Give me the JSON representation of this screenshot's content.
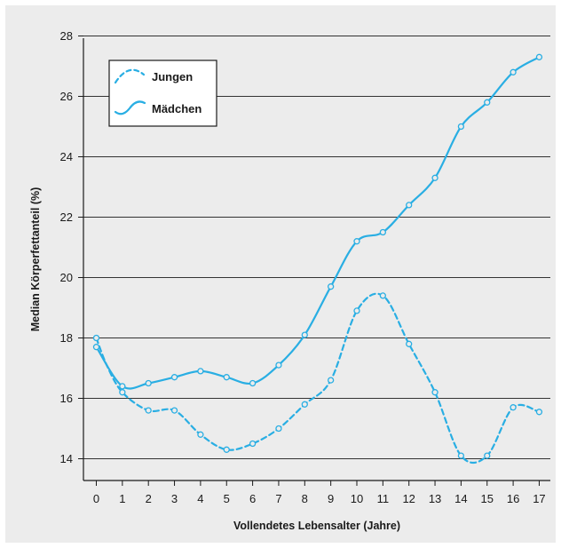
{
  "chart_data": {
    "type": "line",
    "title": "",
    "xlabel": "Vollendetes Lebensalter (Jahre)",
    "ylabel": "Median Körperfettanteil (%)",
    "x": [
      0,
      1,
      2,
      3,
      4,
      5,
      6,
      7,
      8,
      9,
      10,
      11,
      12,
      13,
      14,
      15,
      16,
      17
    ],
    "xlim": [
      -0.5,
      17.5
    ],
    "ylim": [
      13.2,
      28
    ],
    "yticks": [
      14,
      16,
      18,
      20,
      22,
      24,
      26,
      28
    ],
    "grid": "horizontal",
    "legend_position": "top-left",
    "series": [
      {
        "name": "Jungen",
        "style": "dashed",
        "color": "#29aee3",
        "points": [
          [
            0,
            18.0
          ],
          [
            0.4,
            17.1
          ],
          [
            1,
            16.2
          ],
          [
            2,
            15.6
          ],
          [
            3,
            15.6
          ],
          [
            4,
            14.8
          ],
          [
            5,
            14.3
          ],
          [
            6,
            14.5
          ],
          [
            7,
            15.0
          ],
          [
            8,
            15.8
          ],
          [
            9,
            16.6
          ],
          [
            10,
            18.9
          ],
          [
            11,
            19.4
          ],
          [
            12,
            17.8
          ],
          [
            13,
            16.2
          ],
          [
            14,
            14.1
          ],
          [
            15,
            14.1
          ],
          [
            16,
            15.7
          ],
          [
            17,
            15.55
          ]
        ]
      },
      {
        "name": "Mädchen",
        "style": "solid",
        "color": "#29aee3",
        "points": [
          [
            0,
            17.7
          ],
          [
            1,
            16.4
          ],
          [
            2,
            16.5
          ],
          [
            3,
            16.7
          ],
          [
            4,
            16.9
          ],
          [
            5,
            16.7
          ],
          [
            6,
            16.5
          ],
          [
            7,
            17.1
          ],
          [
            8,
            18.1
          ],
          [
            9,
            19.7
          ],
          [
            10,
            21.2
          ],
          [
            11,
            21.5
          ],
          [
            12,
            22.4
          ],
          [
            13,
            23.3
          ],
          [
            14,
            25.0
          ],
          [
            15,
            25.8
          ],
          [
            16,
            26.8
          ],
          [
            17,
            27.3
          ]
        ]
      }
    ]
  }
}
